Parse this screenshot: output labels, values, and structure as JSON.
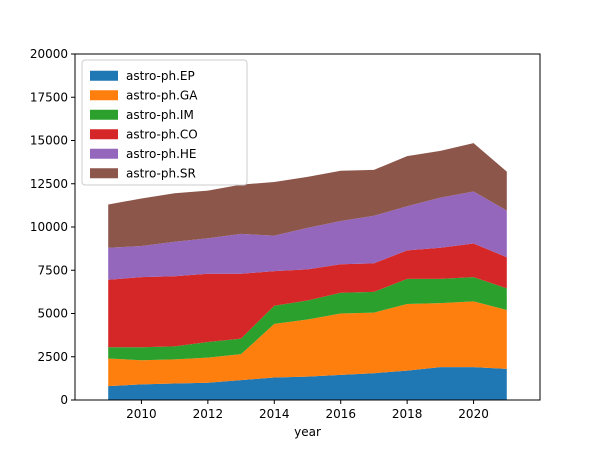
{
  "chart_data": {
    "type": "area",
    "stacked": true,
    "title": "",
    "xlabel": "year",
    "ylabel": "",
    "x": [
      2009,
      2010,
      2011,
      2012,
      2013,
      2014,
      2015,
      2016,
      2017,
      2018,
      2019,
      2020,
      2021
    ],
    "xlim": [
      2008,
      2022
    ],
    "ylim": [
      0,
      20000
    ],
    "xticks": [
      2010,
      2012,
      2014,
      2016,
      2018,
      2020
    ],
    "yticks": [
      0,
      2500,
      5000,
      7500,
      10000,
      12500,
      15000,
      17500,
      20000
    ],
    "legend_position": "top-left",
    "grid": false,
    "series": [
      {
        "name": "astro-ph.EP",
        "color": "#1f77b4",
        "values": [
          800,
          900,
          950,
          1000,
          1150,
          1300,
          1350,
          1450,
          1550,
          1700,
          1900,
          1900,
          1800
        ]
      },
      {
        "name": "astro-ph.GA",
        "color": "#ff7f0e",
        "values": [
          1600,
          1400,
          1400,
          1450,
          1500,
          3100,
          3300,
          3550,
          3500,
          3850,
          3700,
          3800,
          3400
        ]
      },
      {
        "name": "astro-ph.IM",
        "color": "#2ca02c",
        "values": [
          650,
          750,
          750,
          900,
          900,
          1050,
          1100,
          1200,
          1200,
          1450,
          1400,
          1400,
          1250
        ]
      },
      {
        "name": "astro-ph.CO",
        "color": "#d62728",
        "values": [
          3900,
          4050,
          4050,
          3950,
          3750,
          2000,
          1800,
          1650,
          1650,
          1650,
          1800,
          1950,
          1800
        ]
      },
      {
        "name": "astro-ph.HE",
        "color": "#9467bd",
        "values": [
          1850,
          1800,
          2000,
          2050,
          2300,
          2050,
          2400,
          2500,
          2750,
          2550,
          2900,
          3000,
          2700
        ]
      },
      {
        "name": "astro-ph.SR",
        "color": "#8c564b",
        "values": [
          2500,
          2750,
          2800,
          2750,
          2850,
          3100,
          2950,
          2900,
          2650,
          2900,
          2700,
          2800,
          2250
        ]
      }
    ]
  }
}
